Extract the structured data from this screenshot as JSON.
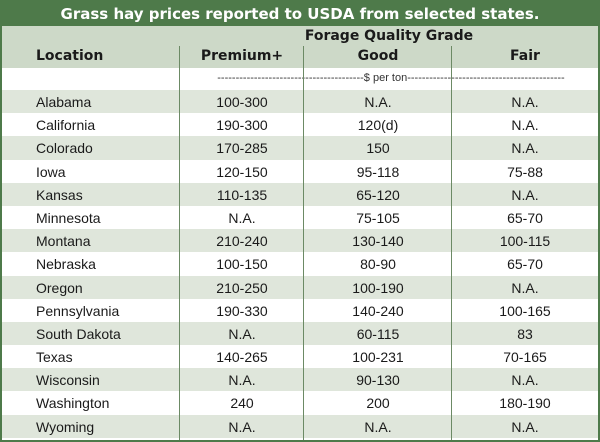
{
  "title": "Grass hay prices reported to USDA from selected states.",
  "header": {
    "group": "Forage Quality Grade",
    "location": "Location",
    "premium": "Premium+",
    "good": "Good",
    "fair": "Fair"
  },
  "unit_row": "----------------------------------------$ per ton-------------------------------------------",
  "rows": [
    {
      "location": "Alabama",
      "premium": "100-300",
      "good": "N.A.",
      "fair": "N.A."
    },
    {
      "location": "California",
      "premium": "190-300",
      "good": "120(d)",
      "fair": "N.A."
    },
    {
      "location": "Colorado",
      "premium": "170-285",
      "good": "150",
      "fair": "N.A."
    },
    {
      "location": "Iowa",
      "premium": "120-150",
      "good": "95-118",
      "fair": "75-88"
    },
    {
      "location": "Kansas",
      "premium": "110-135",
      "good": "65-120",
      "fair": "N.A."
    },
    {
      "location": "Minnesota",
      "premium": "N.A.",
      "good": "75-105",
      "fair": "65-70"
    },
    {
      "location": "Montana",
      "premium": "210-240",
      "good": "130-140",
      "fair": "100-115"
    },
    {
      "location": "Nebraska",
      "premium": "100-150",
      "good": "80-90",
      "fair": "65-70"
    },
    {
      "location": "Oregon",
      "premium": "210-250",
      "good": "100-190",
      "fair": "N.A."
    },
    {
      "location": "Pennsylvania",
      "premium": "190-330",
      "good": "140-240",
      "fair": "100-165"
    },
    {
      "location": "South Dakota",
      "premium": "N.A.",
      "good": "60-115",
      "fair": "83"
    },
    {
      "location": "Texas",
      "premium": "140-265",
      "good": "100-231",
      "fair": "70-165"
    },
    {
      "location": "Wisconsin",
      "premium": "N.A.",
      "good": "90-130",
      "fair": "N.A."
    },
    {
      "location": "Washington",
      "premium": "240",
      "good": "200",
      "fair": "180-190"
    },
    {
      "location": "Wyoming",
      "premium": "N.A.",
      "good": "N.A.",
      "fair": "N.A."
    }
  ],
  "colors": {
    "title_bg": "#4e7a4a",
    "header_bg": "#cdd9c8",
    "shade_row": "#dfe6db",
    "rule": "#6c8a65"
  }
}
